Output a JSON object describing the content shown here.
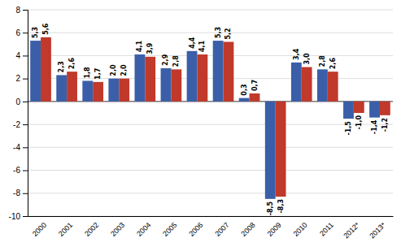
{
  "chart_data": {
    "type": "bar",
    "categories": [
      "2000",
      "2001",
      "2002",
      "2003",
      "2004",
      "2005",
      "2006",
      "2007",
      "2008",
      "2009",
      "2010",
      "2011",
      "2012*",
      "2013*"
    ],
    "series": [
      {
        "color": "#3a5fa8",
        "values": [
          5.3,
          2.3,
          1.8,
          2.0,
          4.1,
          2.9,
          4.4,
          5.3,
          0.3,
          -8.5,
          3.4,
          2.8,
          -1.5,
          -1.4
        ],
        "value_labels": [
          "5,3",
          "2,3",
          "1,8",
          "2,0",
          "4,1",
          "2,9",
          "4,4",
          "5,3",
          "0,3",
          "-8,5",
          "3,4",
          "2,8",
          "-1,5",
          "-1,4"
        ]
      },
      {
        "color": "#c0392b",
        "values": [
          5.6,
          2.6,
          1.7,
          2.0,
          3.9,
          2.8,
          4.1,
          5.2,
          0.7,
          -8.3,
          3.0,
          2.6,
          -1.0,
          -1.2
        ],
        "value_labels": [
          "5,6",
          "2,6",
          "1,7",
          "2,0",
          "3,9",
          "2,8",
          "4,1",
          "5,2",
          "0,7",
          "-8,3",
          "3,0",
          "2,6",
          "-1,0",
          "-1,2"
        ]
      }
    ],
    "ylim": [
      -10,
      8
    ],
    "yticks": [
      -10,
      -8,
      -6,
      -4,
      -2,
      0,
      2,
      4,
      6,
      8
    ],
    "grid": true,
    "data_labels": true
  }
}
